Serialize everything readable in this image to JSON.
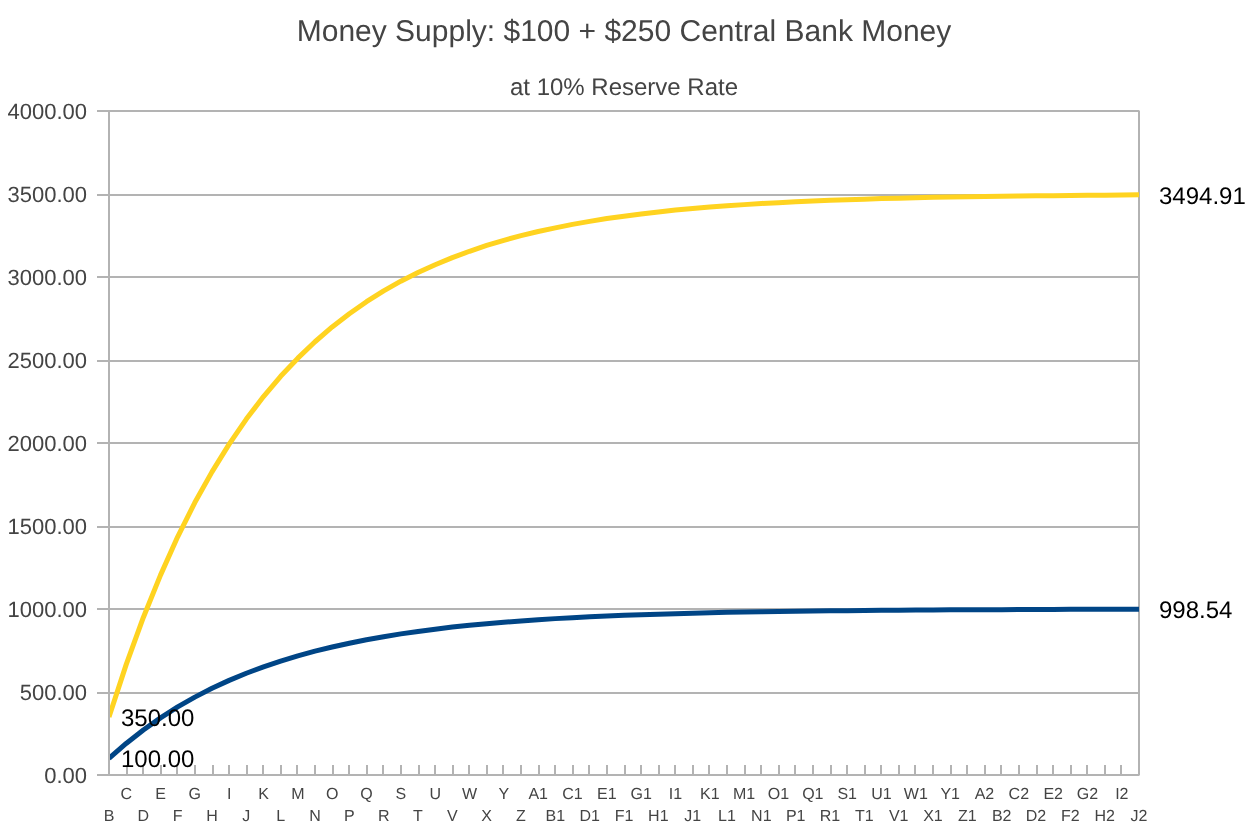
{
  "chart_data": {
    "type": "line",
    "title": "Money Supply: $100 + $250 Central Bank Money",
    "subtitle": "at 10% Reserve Rate",
    "categories": [
      "B",
      "C",
      "D",
      "E",
      "F",
      "G",
      "H",
      "I",
      "J",
      "K",
      "L",
      "M",
      "N",
      "O",
      "P",
      "Q",
      "R",
      "S",
      "T",
      "U",
      "V",
      "W",
      "X",
      "Y",
      "Z",
      "A1",
      "B1",
      "C1",
      "D1",
      "E1",
      "F1",
      "G1",
      "H1",
      "I1",
      "J1",
      "K1",
      "L1",
      "M1",
      "N1",
      "O1",
      "P1",
      "Q1",
      "R1",
      "S1",
      "T1",
      "U1",
      "V1",
      "W1",
      "X1",
      "Y1",
      "Z1",
      "A2",
      "B2",
      "C2",
      "D2",
      "E2",
      "F2",
      "G2",
      "H2",
      "I2",
      "J2"
    ],
    "series": [
      {
        "color": "#ffd320",
        "values": [
          350,
          665,
          949,
          1204,
          1435,
          1641,
          1826,
          1993,
          2144,
          2280,
          2402,
          2511,
          2610,
          2699,
          2779,
          2851,
          2916,
          2975,
          3027,
          3074,
          3117,
          3155,
          3190,
          3221,
          3249,
          3274,
          3296,
          3317,
          3335,
          3352,
          3366,
          3380,
          3392,
          3403,
          3412,
          3421,
          3429,
          3436,
          3443,
          3448,
          3453,
          3458,
          3462,
          3466,
          3469,
          3473,
          3475,
          3478,
          3480,
          3482,
          3484,
          3485,
          3487,
          3488,
          3489,
          3490,
          3491,
          3492,
          3493,
          3494,
          3494.91
        ],
        "value_labels": [
          "350.00",
          null,
          null,
          null,
          null,
          null,
          null,
          null,
          null,
          null,
          null,
          null,
          null,
          null,
          null,
          null,
          null,
          null,
          null,
          null,
          null,
          null,
          null,
          null,
          null,
          null,
          null,
          null,
          null,
          null,
          null,
          null,
          null,
          null,
          null,
          null,
          null,
          null,
          null,
          null,
          null,
          null,
          null,
          null,
          null,
          null,
          null,
          null,
          null,
          null,
          null,
          null,
          null,
          null,
          null,
          null,
          null,
          null,
          null,
          null,
          "3494.91"
        ]
      },
      {
        "color": "#004586",
        "values": [
          100,
          190,
          271,
          344,
          410,
          469,
          522,
          570,
          613,
          651,
          686,
          718,
          746,
          771,
          794,
          815,
          833,
          850,
          865,
          878,
          891,
          902,
          911,
          920,
          928,
          935,
          942,
          948,
          953,
          958,
          962,
          966,
          969,
          972,
          975,
          977,
          980,
          982,
          984,
          985,
          987,
          988,
          989,
          990,
          991,
          992,
          993,
          994,
          994,
          995,
          995,
          996,
          996,
          997,
          997,
          997,
          998,
          998,
          998,
          998,
          998.54
        ],
        "value_labels": [
          "100.00",
          null,
          null,
          null,
          null,
          null,
          null,
          null,
          null,
          null,
          null,
          null,
          null,
          null,
          null,
          null,
          null,
          null,
          null,
          null,
          null,
          null,
          null,
          null,
          null,
          null,
          null,
          null,
          null,
          null,
          null,
          null,
          null,
          null,
          null,
          null,
          null,
          null,
          null,
          null,
          null,
          null,
          null,
          null,
          null,
          null,
          null,
          null,
          null,
          null,
          null,
          null,
          null,
          null,
          null,
          null,
          null,
          null,
          null,
          null,
          "998.54"
        ]
      }
    ],
    "ylim": [
      0,
      4000
    ],
    "yticks": [
      {
        "value": 0,
        "label": "0.00"
      },
      {
        "value": 500,
        "label": "500.00"
      },
      {
        "value": 1000,
        "label": "1000.00"
      },
      {
        "value": 1500,
        "label": "1500.00"
      },
      {
        "value": 2000,
        "label": "2000.00"
      },
      {
        "value": 2500,
        "label": "2500.00"
      },
      {
        "value": 3000,
        "label": "3000.00"
      },
      {
        "value": 3500,
        "label": "3500.00"
      },
      {
        "value": 4000,
        "label": "4000.00"
      }
    ],
    "grid": "y",
    "marker": "none",
    "line_style": "solid"
  }
}
